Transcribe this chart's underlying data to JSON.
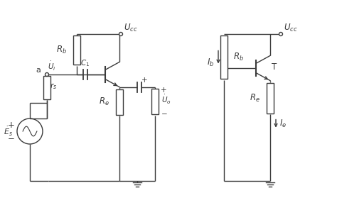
{
  "bg_color": "#ffffff",
  "line_color": "#3a3a3a",
  "figsize": [
    4.74,
    3.03
  ],
  "dpi": 100,
  "lw": 1.0,
  "fs": 8.5
}
